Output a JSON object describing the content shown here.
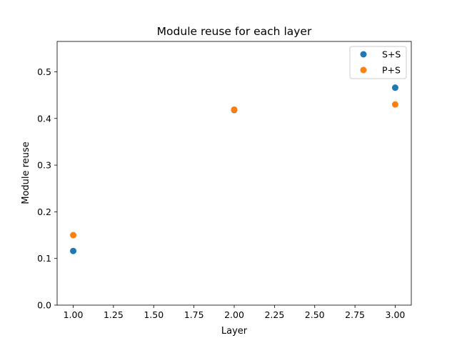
{
  "chart_data": {
    "type": "scatter",
    "title": "Module reuse for each layer",
    "xlabel": "Layer",
    "ylabel": "Module reuse",
    "xlim": [
      0.9,
      3.1
    ],
    "ylim": [
      0.0,
      0.565
    ],
    "xticks": [
      "1.00",
      "1.25",
      "1.50",
      "1.75",
      "2.00",
      "2.25",
      "2.50",
      "2.75",
      "3.00"
    ],
    "yticks": [
      "0.0",
      "0.1",
      "0.2",
      "0.3",
      "0.4",
      "0.5"
    ],
    "grid": false,
    "legend_position": "top-right",
    "series": [
      {
        "name": "S+S",
        "color": "#1f77b4",
        "x": [
          1,
          2,
          3
        ],
        "y": [
          0.116,
          0.418,
          0.466
        ]
      },
      {
        "name": "P+S",
        "color": "#ff7f0e",
        "x": [
          1,
          2,
          3
        ],
        "y": [
          0.15,
          0.419,
          0.43
        ]
      }
    ]
  }
}
